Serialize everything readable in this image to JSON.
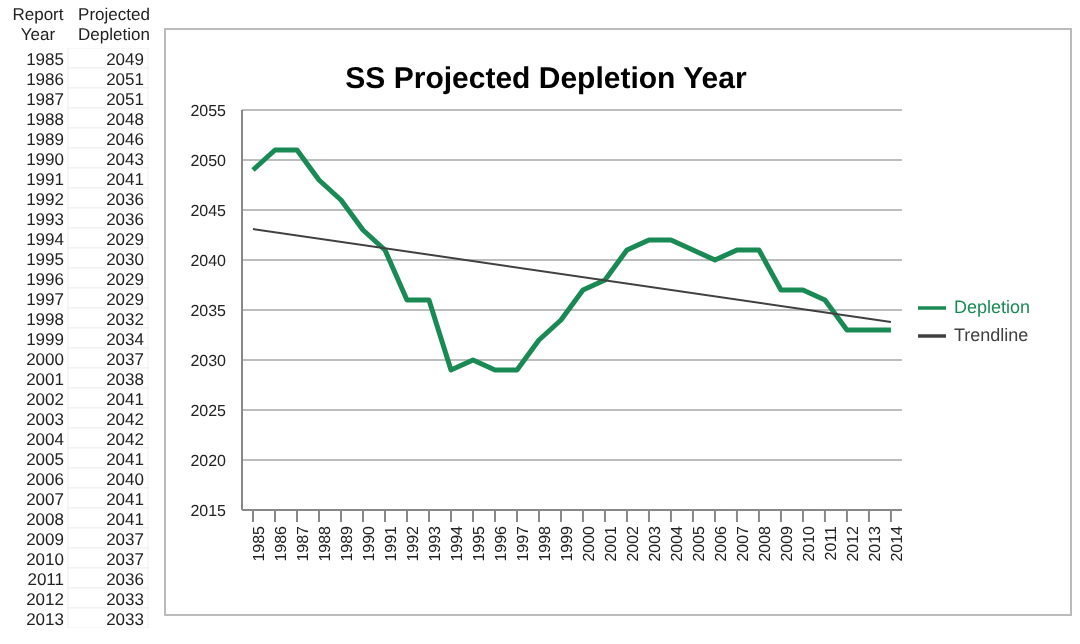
{
  "chart_data": [
    {
      "type": "heatmap",
      "annotations": [
        "Report Year"
      ],
      "categories": [
        "Projected Depletion"
      ],
      "y_categories": [
        "1985",
        "1986",
        "1987",
        "1988",
        "1989",
        "1990",
        "1991",
        "1992",
        "1993",
        "1994",
        "1995",
        "1996",
        "1997",
        "1998",
        "1999",
        "2000",
        "2001",
        "2002",
        "2003",
        "2004",
        "2005",
        "2006",
        "2007",
        "2008",
        "2009",
        "2010",
        "2011",
        "2012",
        "2013"
      ],
      "cells": [
        [
          null
        ],
        [
          null
        ],
        [
          null
        ],
        [
          null
        ],
        [
          null
        ],
        [
          null
        ],
        [
          null
        ],
        [
          null
        ],
        [
          null
        ],
        [
          null
        ],
        [
          null
        ],
        [
          null
        ],
        [
          null
        ],
        [
          null
        ],
        [
          null
        ],
        [
          null
        ],
        [
          null
        ],
        [
          null
        ],
        [
          null
        ],
        [
          null
        ],
        [
          null
        ],
        [
          null
        ],
        [
          null
        ],
        [
          null
        ],
        [
          null
        ],
        [
          null
        ],
        [
          null
        ],
        [
          null
        ],
        [
          null
        ]
      ],
      "cell_labels": [
        [
          "2049"
        ],
        [
          "2051"
        ],
        [
          "2051"
        ],
        [
          "2048"
        ],
        [
          "2046"
        ],
        [
          "2043"
        ],
        [
          "2041"
        ],
        [
          "2036"
        ],
        [
          "2036"
        ],
        [
          "2029"
        ],
        [
          "2030"
        ],
        [
          "2029"
        ],
        [
          "2029"
        ],
        [
          "2032"
        ],
        [
          "2034"
        ],
        [
          "2037"
        ],
        [
          "2038"
        ],
        [
          "2041"
        ],
        [
          "2042"
        ],
        [
          "2042"
        ],
        [
          "2041"
        ],
        [
          "2040"
        ],
        [
          "2041"
        ],
        [
          "2041"
        ],
        [
          "2037"
        ],
        [
          "2037"
        ],
        [
          "2036"
        ],
        [
          "2033"
        ],
        [
          "2033"
        ]
      ]
    },
    {
      "type": "line",
      "title": "SS Projected Depletion Year",
      "categories": [
        "1985",
        "1986",
        "1987",
        "1988",
        "1989",
        "1990",
        "1991",
        "1992",
        "1993",
        "1994",
        "1995",
        "1996",
        "1997",
        "1998",
        "1999",
        "2000",
        "2001",
        "2002",
        "2003",
        "2004",
        "2005",
        "2006",
        "2007",
        "2008",
        "2009",
        "2010",
        "2011",
        "2012",
        "2013",
        "2014"
      ],
      "series": [
        {
          "name": "Depletion",
          "color": "#1a8a55",
          "values": [
            2049,
            2051,
            2051,
            2048,
            2046,
            2043,
            2041,
            2036,
            2036,
            2029,
            2030,
            2029,
            2029,
            2032,
            2034,
            2037,
            2038,
            2041,
            2042,
            2042,
            2041,
            2040,
            2041,
            2041,
            2037,
            2037,
            2036,
            2033,
            2033,
            2033
          ]
        },
        {
          "name": "Trendline",
          "type": "line",
          "color": "#404040",
          "values": [
            2043.1,
            null,
            null,
            null,
            null,
            null,
            null,
            null,
            null,
            null,
            null,
            null,
            null,
            null,
            null,
            null,
            null,
            null,
            null,
            null,
            null,
            null,
            null,
            null,
            null,
            null,
            null,
            null,
            null,
            2033.8
          ]
        }
      ],
      "ylim": [
        2015,
        2055
      ],
      "yticks": [
        2015,
        2020,
        2025,
        2030,
        2035,
        2040,
        2045,
        2050,
        2055
      ],
      "grid": "y",
      "legend": "right",
      "marker": "none",
      "line_style": "solid"
    }
  ]
}
